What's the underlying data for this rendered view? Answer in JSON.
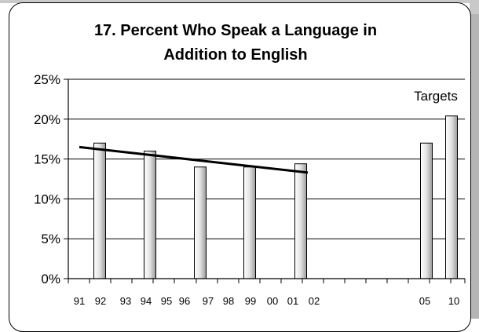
{
  "chart_data": {
    "type": "bar",
    "title_lines": [
      "17. Percent Who Speak a Language in",
      "Addition to English"
    ],
    "xlabel": "",
    "ylabel": "",
    "ylim": [
      0,
      25
    ],
    "ytick_values": [
      0,
      5,
      10,
      15,
      20,
      25
    ],
    "ytick_labels": [
      "0%",
      "5%",
      "10%",
      "15%",
      "20%",
      "25%"
    ],
    "categories": [
      "91",
      "92",
      "93",
      "94",
      "95",
      "96",
      "97",
      "98",
      "99",
      "00",
      "01",
      "02",
      "05",
      "10"
    ],
    "values": [
      null,
      17.0,
      null,
      16.0,
      null,
      14.0,
      null,
      14.0,
      null,
      14.4,
      null,
      null,
      17.0,
      20.4
    ],
    "trendline": {
      "from_category": "91",
      "to_category": "00",
      "from_value": 16.5,
      "to_value": 13.3
    },
    "annotation": "Targets",
    "grid": true,
    "legend": "none",
    "colors": {
      "bar_light": "#ffffff",
      "bar_dark": "#9a9a9a",
      "line": "#000000",
      "grid": "#000000"
    }
  }
}
